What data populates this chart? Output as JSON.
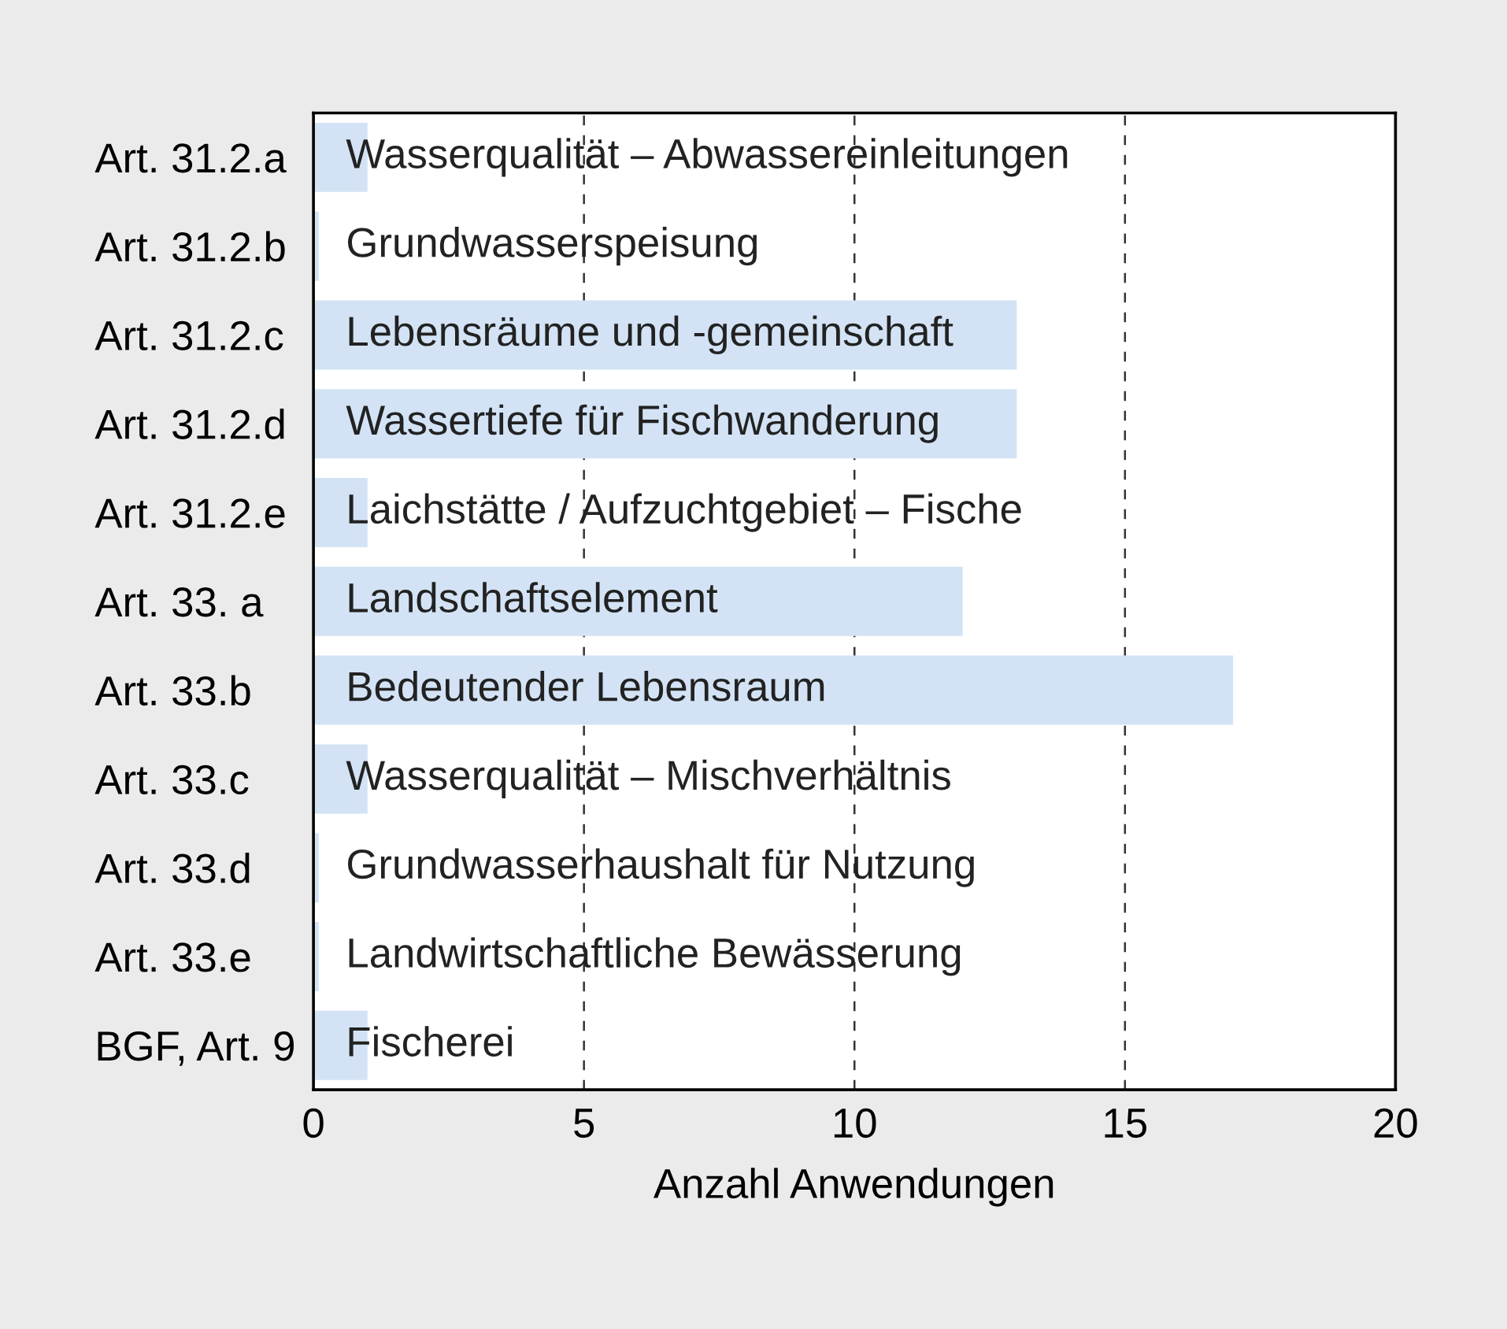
{
  "chart_data": {
    "type": "bar",
    "orientation": "horizontal",
    "xlabel": "Anzahl Anwendungen",
    "categories": [
      "Art. 31.2.a",
      "Art. 31.2.b",
      "Art. 31.2.c",
      "Art. 31.2.d",
      "Art. 31.2.e",
      "Art. 33. a",
      "Art. 33.b",
      "Art. 33.c",
      "Art. 33.d",
      "Art. 33.e",
      "BGF, Art. 9"
    ],
    "values": [
      1,
      0.1,
      13,
      13,
      1,
      12,
      17,
      1,
      0.1,
      0.1,
      1
    ],
    "color": "#d3e3f5",
    "value_labels": [
      "Wasserqualität – Abwassereinleitungen",
      "Grundwasserspeisung",
      "Lebensräume und -gemeinschaft",
      "Wassertiefe für Fischwanderung",
      "Laichstätte / Aufzuchtgebiet – Fische",
      "Landschaftselement",
      "Bedeutender Lebensraum",
      "Wasserqualität – Mischverhältnis",
      "Grundwasserhaushalt für Nutzung",
      "Landwirtschaftliche Bewässerung",
      "Fischerei"
    ],
    "xlim": [
      0,
      20
    ],
    "xticks": [
      0,
      5,
      10,
      15,
      20
    ],
    "grid": "x",
    "legend": false
  }
}
